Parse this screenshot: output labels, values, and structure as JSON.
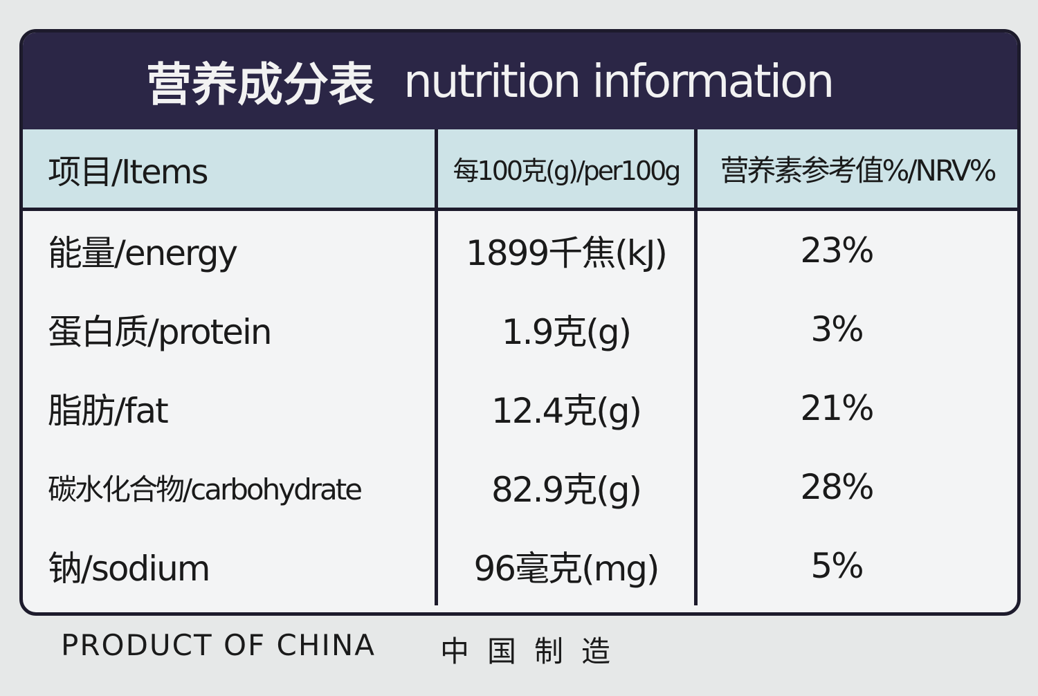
{
  "title": {
    "zh": "营养成分表",
    "en": "nutrition information"
  },
  "table": {
    "header": [
      "项目/Items",
      "每100克(g)/per100g",
      "营养素参考值%/NRV%"
    ],
    "rows": [
      [
        "能量/energy",
        "1899千焦(kJ)",
        "23%"
      ],
      [
        "蛋白质/protein",
        "1.9克(g)",
        "3%"
      ],
      [
        "脂肪/fat",
        "12.4克(g)",
        "21%"
      ],
      [
        "碳水化合物/carbohydrate",
        "82.9克(g)",
        "28%"
      ],
      [
        "钠/sodium",
        "96毫克(mg)",
        "5%"
      ]
    ]
  },
  "footer": {
    "origin_en": "PRODUCT OF CHINA",
    "origin_zh": "中国制造"
  }
}
